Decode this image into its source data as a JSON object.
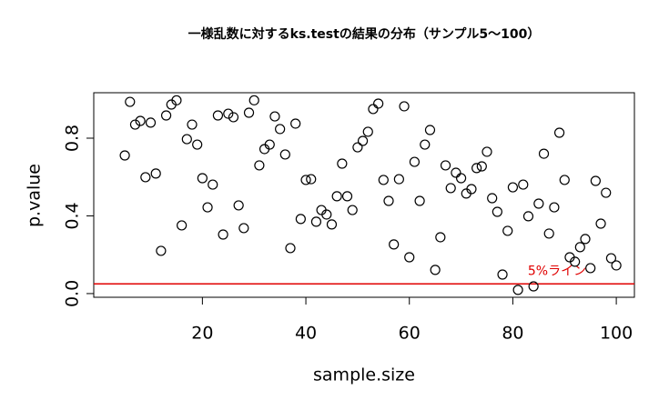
{
  "chart_data": {
    "type": "scatter",
    "title": "一様乱数に対するks.testの結果の分布（サンプル5〜100）",
    "x_label": "sample.size",
    "y_label": "p.value",
    "x": [
      5,
      6,
      7,
      8,
      9,
      10,
      11,
      12,
      13,
      14,
      15,
      16,
      17,
      18,
      19,
      20,
      21,
      22,
      23,
      24,
      25,
      26,
      27,
      28,
      29,
      30,
      31,
      32,
      33,
      34,
      35,
      36,
      37,
      38,
      39,
      40,
      41,
      42,
      43,
      44,
      45,
      46,
      47,
      48,
      49,
      50,
      51,
      52,
      53,
      54,
      55,
      56,
      57,
      58,
      59,
      60,
      61,
      62,
      63,
      64,
      65,
      66,
      67,
      68,
      69,
      70,
      71,
      72,
      73,
      74,
      75,
      76,
      77,
      78,
      79,
      80,
      81,
      82,
      83,
      84,
      85,
      86,
      87,
      88,
      89,
      90,
      91,
      92,
      93,
      94,
      95,
      96,
      97,
      98,
      99,
      100
    ],
    "values": [
      0.711,
      0.987,
      0.87,
      0.889,
      0.599,
      0.88,
      0.618,
      0.22,
      0.917,
      0.973,
      0.995,
      0.351,
      0.795,
      0.87,
      0.767,
      0.594,
      0.444,
      0.561,
      0.917,
      0.304,
      0.926,
      0.908,
      0.454,
      0.337,
      0.931,
      0.995,
      0.66,
      0.744,
      0.767,
      0.912,
      0.847,
      0.716,
      0.234,
      0.875,
      0.384,
      0.585,
      0.589,
      0.37,
      0.43,
      0.407,
      0.356,
      0.501,
      0.669,
      0.501,
      0.43,
      0.753,
      0.786,
      0.833,
      0.95,
      0.978,
      0.585,
      0.477,
      0.253,
      0.589,
      0.964,
      0.187,
      0.678,
      0.477,
      0.767,
      0.842,
      0.122,
      0.29,
      0.66,
      0.543,
      0.622,
      0.594,
      0.515,
      0.538,
      0.646,
      0.655,
      0.73,
      0.491,
      0.421,
      0.098,
      0.323,
      0.547,
      0.019,
      0.561,
      0.398,
      0.037,
      0.463,
      0.72,
      0.309,
      0.444,
      0.828,
      0.585,
      0.187,
      0.164,
      0.239,
      0.281,
      0.131,
      0.58,
      0.36,
      0.519,
      0.182,
      0.145
    ],
    "color": "#000000",
    "hline": {
      "value": 0.05,
      "label": "5%ライン",
      "color": "#e00000"
    },
    "xlim": [
      -1,
      103.5
    ],
    "ylim": [
      -0.019,
      1.034
    ],
    "xticks": [
      20,
      40,
      60,
      80,
      100
    ],
    "yticks": [
      {
        "value": 0,
        "label": "0.0"
      },
      0.4,
      0.8
    ]
  }
}
